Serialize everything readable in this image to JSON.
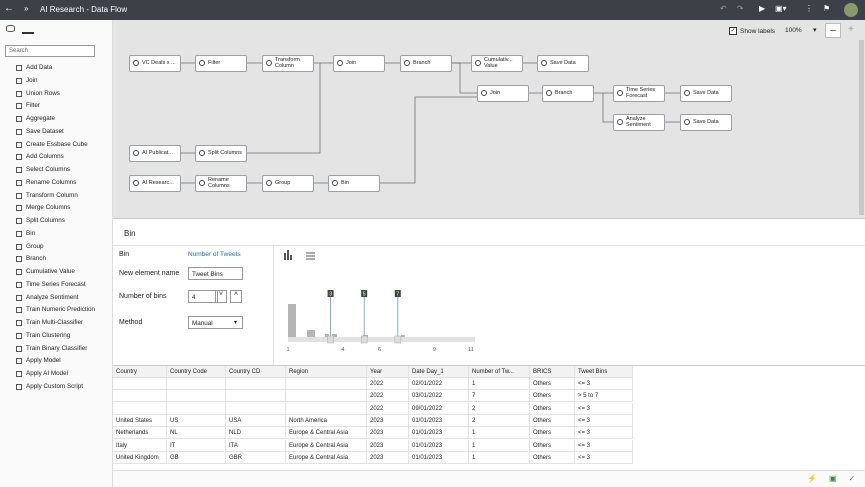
{
  "header": {
    "title": "AI Research - Data Flow"
  },
  "sidebar": {
    "search_placeholder": "Search",
    "steps": [
      "Add Data",
      "Join",
      "Union Rows",
      "Filter",
      "Aggregate",
      "Save Dataset",
      "Create Essbase Cube",
      "Add Columns",
      "Select Columns",
      "Rename Columns",
      "Transform Column",
      "Merge Columns",
      "Split Columns",
      "Bin",
      "Group",
      "Branch",
      "Cumulative Value",
      "Time Series Forecast",
      "Analyze Sentiment",
      "Train Numeric Prediction",
      "Train Multi-Classifier",
      "Train Clustering",
      "Train Binary Classifier",
      "Apply Model",
      "Apply AI Model",
      "Apply Custom Script"
    ]
  },
  "canvas": {
    "show_labels": "Show labels",
    "zoom": "100%",
    "nodes": [
      {
        "label": "VC Deals x ..."
      },
      {
        "label": "Filter"
      },
      {
        "label": "Transform Column"
      },
      {
        "label": "Join"
      },
      {
        "label": "Branch"
      },
      {
        "label": "Cumulativ... Value"
      },
      {
        "label": "Save Data"
      },
      {
        "label": "Join"
      },
      {
        "label": "Branch"
      },
      {
        "label": "Time Series Forecast"
      },
      {
        "label": "Save Data"
      },
      {
        "label": "Analyze Sentiment"
      },
      {
        "label": "Save Data"
      },
      {
        "label": "AI Publicat..."
      },
      {
        "label": "Split Columns"
      },
      {
        "label": "AI Researc..."
      },
      {
        "label": "Rename Columns"
      },
      {
        "label": "Group"
      },
      {
        "label": "Bin"
      }
    ]
  },
  "config": {
    "title": "Bin",
    "fields": [
      {
        "label": "Bin",
        "value": "Number of Tweets"
      },
      {
        "label": "New element name",
        "value": "Tweet Bins"
      },
      {
        "label": "Number of bins",
        "value": 4
      },
      {
        "label": "Method",
        "value": "Manual"
      }
    ]
  },
  "histogram": {
    "boundaries": [
      3,
      5,
      7
    ],
    "axis": [
      1,
      4,
      6,
      9,
      11
    ]
  },
  "table": {
    "columns": [
      "Country",
      "Country Code",
      "Country CD",
      "Region",
      "Year",
      "Date Day_1",
      "Number of Tw...",
      "BRICS",
      "Tweet Bins"
    ],
    "rows": [
      [
        null,
        null,
        null,
        null,
        2022,
        "02/01/2022",
        1,
        "Others",
        "<= 3"
      ],
      [
        null,
        null,
        null,
        null,
        2022,
        "03/01/2022",
        7,
        "Others",
        "> 5 to 7"
      ],
      [
        null,
        null,
        null,
        null,
        2022,
        "09/01/2022",
        2,
        "Others",
        "<= 3"
      ],
      [
        "United States",
        "US",
        "USA",
        "North America",
        2023,
        "01/01/2023",
        2,
        "Others",
        "<= 3"
      ],
      [
        "Netherlands",
        "NL",
        "NLD",
        "Europe & Central Asia",
        2023,
        "01/01/2023",
        1,
        "Others",
        "<= 3"
      ],
      [
        "Italy",
        "IT",
        "ITA",
        "Europe & Central Asia",
        2023,
        "01/01/2023",
        1,
        "Others",
        "<= 3"
      ],
      [
        "United Kingdom",
        "GB",
        "GBR",
        "Europe & Central Asia",
        2023,
        "01/01/2023",
        1,
        "Others",
        "<= 3"
      ]
    ]
  }
}
